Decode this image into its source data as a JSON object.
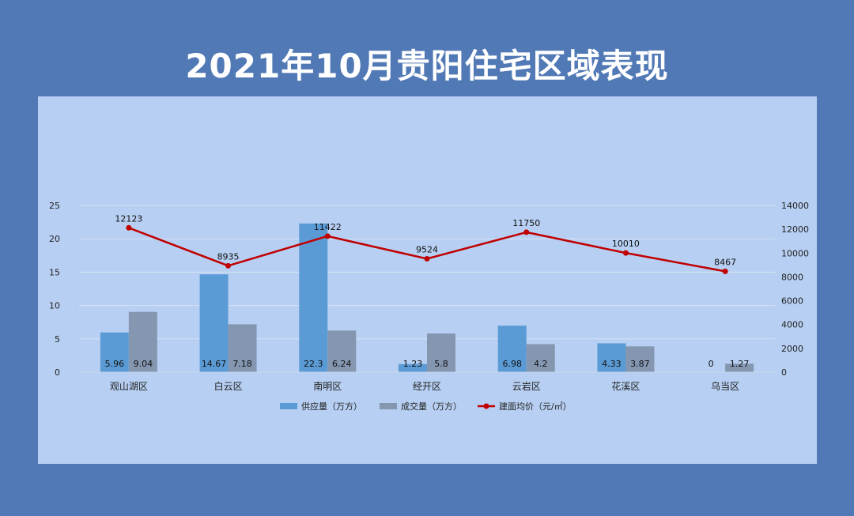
{
  "page": {
    "title": "2021年10月贵阳住宅区域表现",
    "background_color": "#5179b5",
    "panel_color": "#b7cff2"
  },
  "chart_data": {
    "type": "bar",
    "title": "2021年10月贵阳住宅区域表现",
    "categories": [
      "观山湖区",
      "白云区",
      "南明区",
      "经开区",
      "云岩区",
      "花溪区",
      "乌当区"
    ],
    "series": [
      {
        "name": "供应量（万方）",
        "type": "bar",
        "axis": "left",
        "color": "#5b9bd5",
        "values": [
          5.96,
          14.67,
          22.3,
          1.23,
          6.98,
          4.33,
          0
        ]
      },
      {
        "name": "成交量（万方）",
        "type": "bar",
        "axis": "left",
        "color": "#8496b0",
        "values": [
          9.04,
          7.18,
          6.24,
          5.8,
          4.2,
          3.87,
          1.27
        ]
      },
      {
        "name": "建面均价（元/㎡）",
        "type": "line",
        "axis": "right",
        "color": "#c00000",
        "values": [
          12123,
          8935,
          11422,
          9524,
          11750,
          10010,
          8467
        ]
      }
    ],
    "y_left": {
      "min": 0,
      "max": 25,
      "ticks": [
        0,
        5,
        10,
        15,
        20,
        25
      ]
    },
    "y_right": {
      "min": 0,
      "max": 14000,
      "ticks": [
        0,
        2000,
        4000,
        6000,
        8000,
        10000,
        12000,
        14000
      ]
    },
    "grid": true,
    "legend_position": "bottom"
  }
}
